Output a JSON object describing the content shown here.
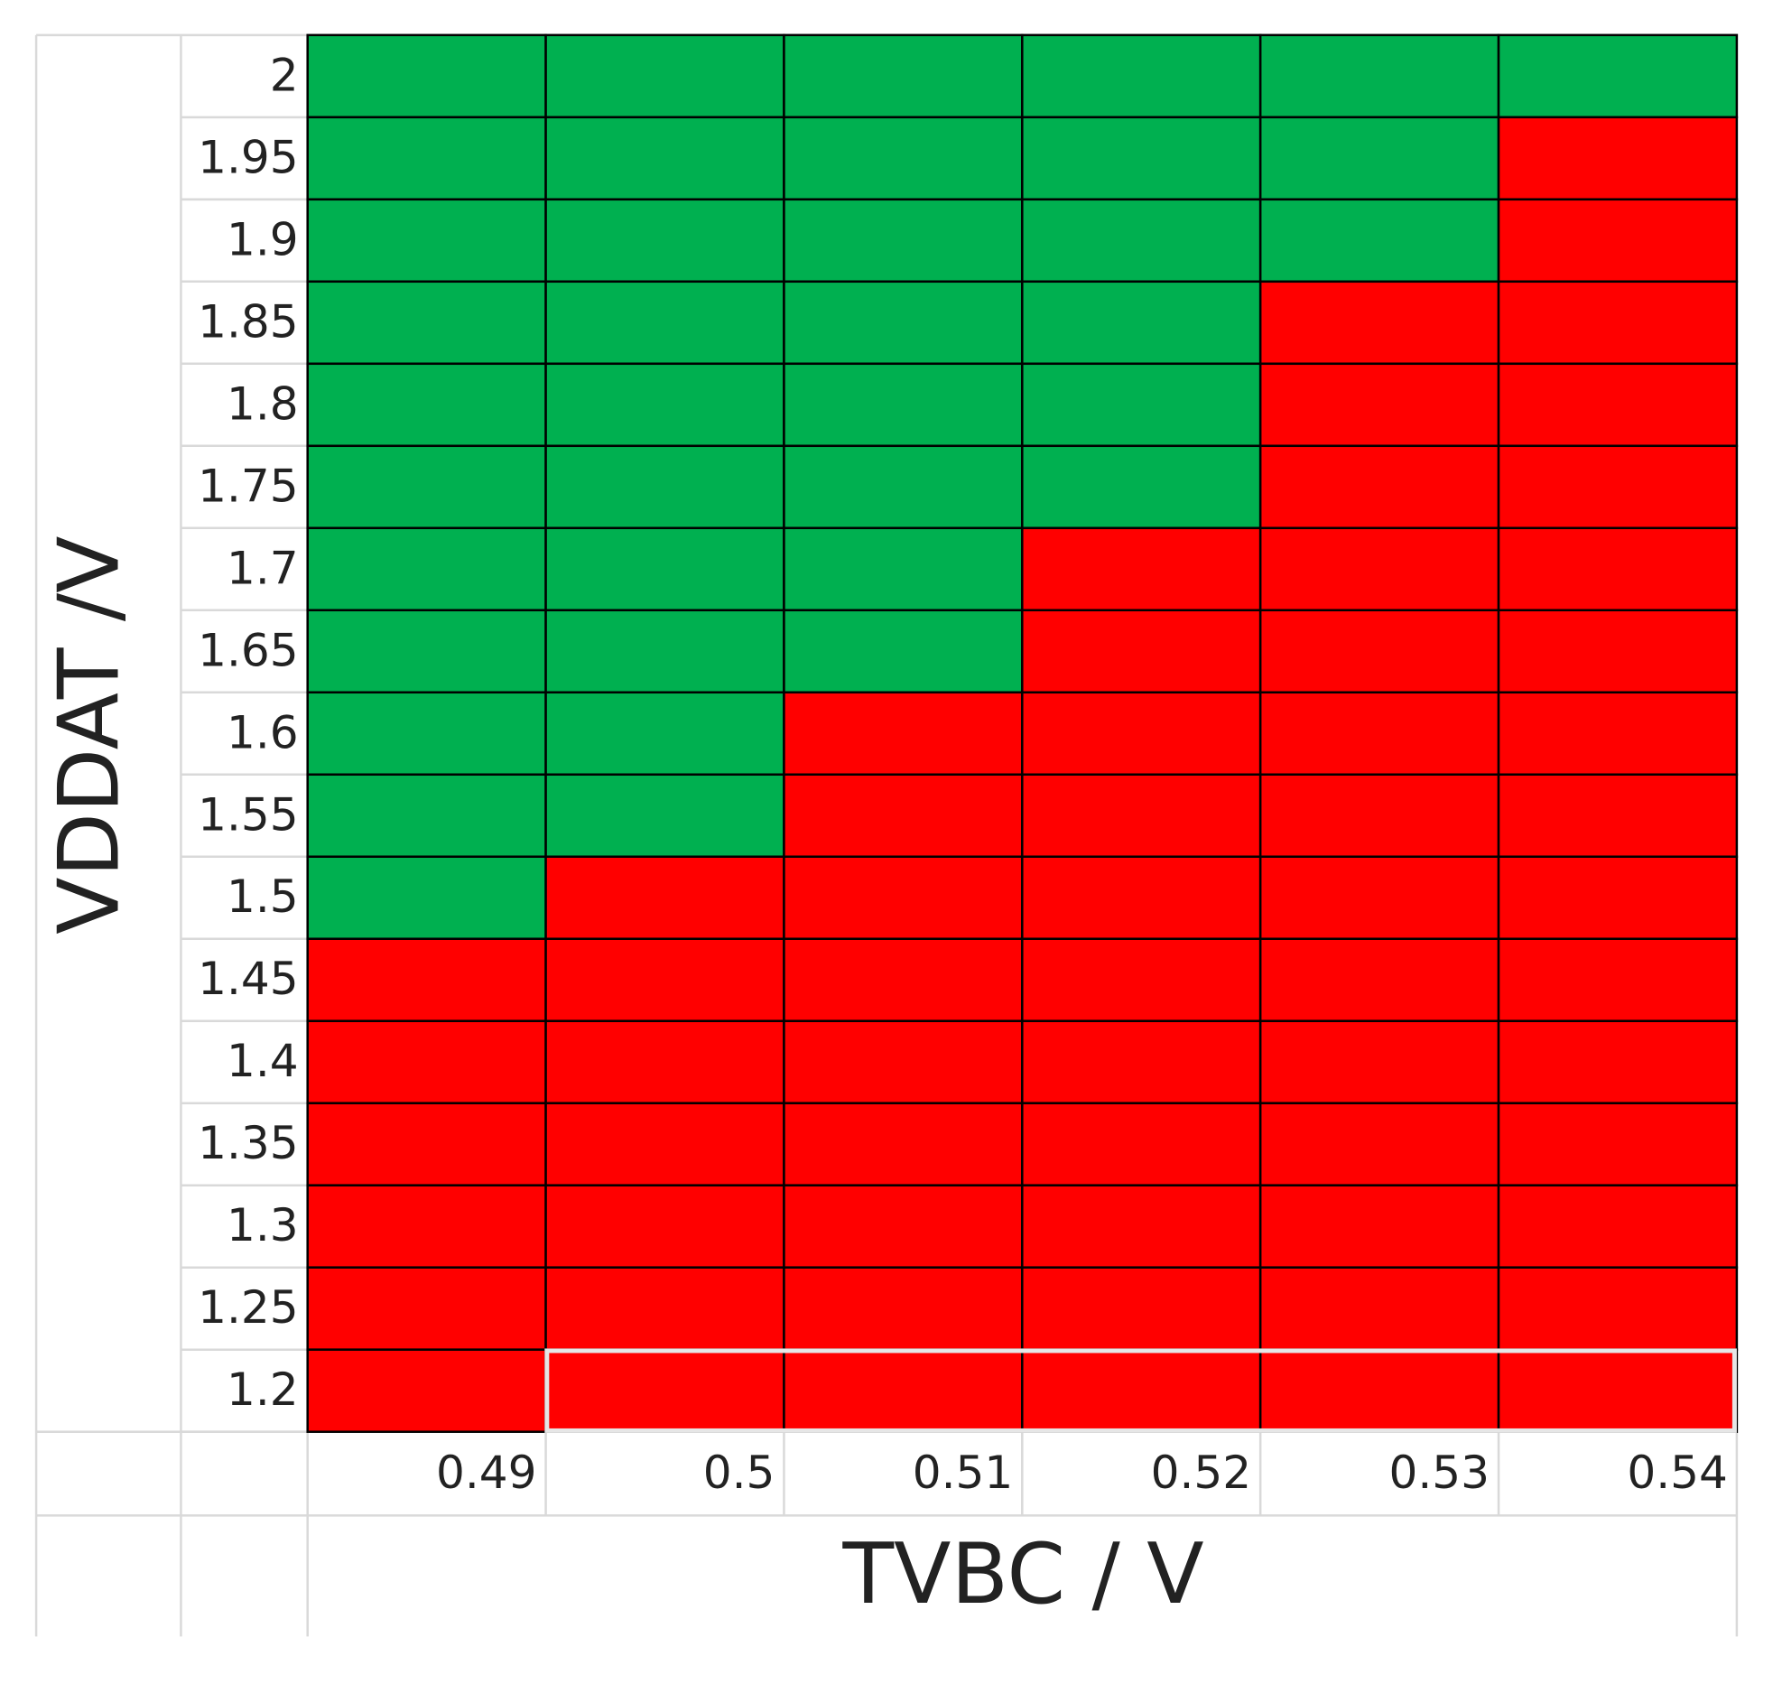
{
  "x_axis_title": "TVBC / V",
  "y_axis_title": "VDDAT /V",
  "column_labels": [
    "0.49",
    "0.5",
    "0.51",
    "0.52",
    "0.53",
    "0.54"
  ],
  "row_labels": [
    "2",
    "1.95",
    "1.9",
    "1.85",
    "1.8",
    "1.75",
    "1.7",
    "1.65",
    "1.6",
    "1.55",
    "1.5",
    "1.45",
    "1.4",
    "1.35",
    "1.3",
    "1.25",
    "1.2"
  ],
  "cells": [
    [
      "#00b050",
      "#00b050",
      "#00b050",
      "#00b050",
      "#00b050",
      "#00b050"
    ],
    [
      "#00b050",
      "#00b050",
      "#00b050",
      "#00b050",
      "#00b050",
      "#ff0000"
    ],
    [
      "#00b050",
      "#00b050",
      "#00b050",
      "#00b050",
      "#00b050",
      "#ff0000"
    ],
    [
      "#00b050",
      "#00b050",
      "#00b050",
      "#00b050",
      "#ff0000",
      "#ff0000"
    ],
    [
      "#00b050",
      "#00b050",
      "#00b050",
      "#00b050",
      "#ff0000",
      "#ff0000"
    ],
    [
      "#00b050",
      "#00b050",
      "#00b050",
      "#00b050",
      "#ff0000",
      "#ff0000"
    ],
    [
      "#00b050",
      "#00b050",
      "#00b050",
      "#ff0000",
      "#ff0000",
      "#ff0000"
    ],
    [
      "#00b050",
      "#00b050",
      "#00b050",
      "#ff0000",
      "#ff0000",
      "#ff0000"
    ],
    [
      "#00b050",
      "#00b050",
      "#ff0000",
      "#ff0000",
      "#ff0000",
      "#ff0000"
    ],
    [
      "#00b050",
      "#00b050",
      "#ff0000",
      "#ff0000",
      "#ff0000",
      "#ff0000"
    ],
    [
      "#00b050",
      "#ff0000",
      "#ff0000",
      "#ff0000",
      "#ff0000",
      "#ff0000"
    ],
    [
      "#ff0000",
      "#ff0000",
      "#ff0000",
      "#ff0000",
      "#ff0000",
      "#ff0000"
    ],
    [
      "#ff0000",
      "#ff0000",
      "#ff0000",
      "#ff0000",
      "#ff0000",
      "#ff0000"
    ],
    [
      "#ff0000",
      "#ff0000",
      "#ff0000",
      "#ff0000",
      "#ff0000",
      "#ff0000"
    ],
    [
      "#ff0000",
      "#ff0000",
      "#ff0000",
      "#ff0000",
      "#ff0000",
      "#ff0000"
    ],
    [
      "#ff0000",
      "#ff0000",
      "#ff0000",
      "#ff0000",
      "#ff0000",
      "#ff0000"
    ],
    [
      "#ff0000",
      "#ff0000",
      "#ff0000",
      "#ff0000",
      "#ff0000",
      "#ff0000"
    ]
  ]
}
